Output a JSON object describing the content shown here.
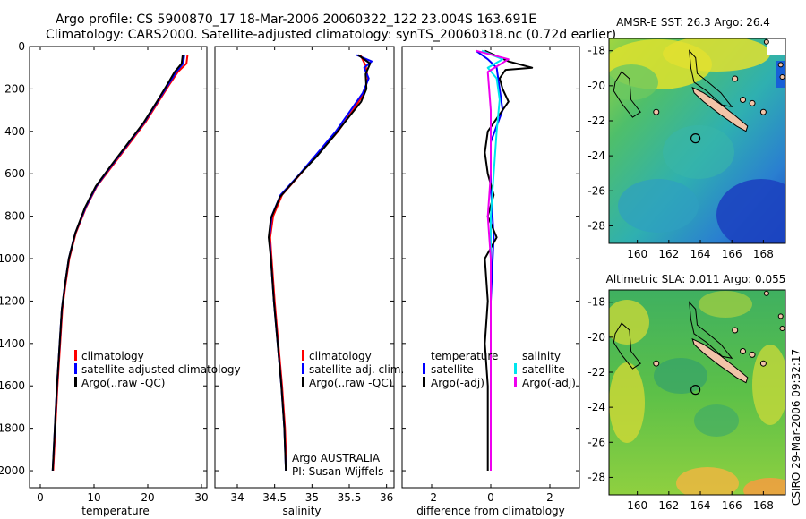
{
  "header": {
    "line1": "Argo profile: CS 5900870_17 18-Mar-2006 20060322_122 23.004S 163.691E",
    "line2": "Climatology: CARS2000. Satellite-adjusted climatology: synTS_20060318.nc (0.72d earlier)"
  },
  "side_stamp": "CSIRO 29-Mar-2006 09:32:17",
  "colors": {
    "climatology": "#ff0000",
    "satellite": "#0000ff",
    "argo": "#000000",
    "sal_satellite": "#00e5ee",
    "sal_argo": "#ee00ee",
    "land": "#f2c4a8"
  },
  "chart_data": [
    {
      "type": "line",
      "id": "temperature",
      "xlabel": "temperature",
      "ylabel": "",
      "xlim": [
        -2,
        31
      ],
      "ylim": [
        2080,
        0
      ],
      "xticks": [
        0,
        10,
        20,
        30
      ],
      "yticks": [
        0,
        200,
        400,
        600,
        800,
        1000,
        1200,
        1400,
        1600,
        1800,
        2000
      ],
      "series": [
        {
          "name": "climatology",
          "color": "#ff0000",
          "points": [
            [
              27.4,
              40
            ],
            [
              27.2,
              80
            ],
            [
              25.6,
              120
            ],
            [
              24.0,
              180
            ],
            [
              22.0,
              260
            ],
            [
              19.5,
              360
            ],
            [
              16.5,
              460
            ],
            [
              13.5,
              560
            ],
            [
              10.5,
              660
            ],
            [
              8.5,
              760
            ],
            [
              6.6,
              880
            ],
            [
              5.4,
              1000
            ],
            [
              4.7,
              1120
            ],
            [
              4.1,
              1240
            ],
            [
              3.7,
              1400
            ],
            [
              3.2,
              1600
            ],
            [
              2.8,
              1800
            ],
            [
              2.4,
              2000
            ]
          ]
        },
        {
          "name": "satellite-adjusted climatology",
          "color": "#0000ff",
          "points": [
            [
              26.8,
              40
            ],
            [
              26.6,
              80
            ],
            [
              25.3,
              120
            ],
            [
              23.8,
              180
            ],
            [
              21.8,
              260
            ],
            [
              19.3,
              360
            ],
            [
              16.3,
              460
            ],
            [
              13.3,
              560
            ],
            [
              10.4,
              660
            ],
            [
              8.4,
              760
            ],
            [
              6.5,
              880
            ],
            [
              5.3,
              1000
            ],
            [
              4.6,
              1120
            ],
            [
              4.0,
              1240
            ],
            [
              3.6,
              1400
            ],
            [
              3.1,
              1600
            ],
            [
              2.7,
              1800
            ],
            [
              2.3,
              2000
            ]
          ]
        },
        {
          "name": "Argo(..raw -QC)",
          "color": "#000000",
          "points": [
            [
              26.5,
              40
            ],
            [
              26.3,
              80
            ],
            [
              25.0,
              120
            ],
            [
              23.6,
              180
            ],
            [
              21.7,
              260
            ],
            [
              19.2,
              360
            ],
            [
              16.2,
              460
            ],
            [
              13.2,
              560
            ],
            [
              10.3,
              660
            ],
            [
              8.3,
              760
            ],
            [
              6.5,
              880
            ],
            [
              5.3,
              1000
            ],
            [
              4.6,
              1120
            ],
            [
              4.0,
              1240
            ],
            [
              3.6,
              1400
            ],
            [
              3.1,
              1600
            ],
            [
              2.7,
              1800
            ],
            [
              2.3,
              2000
            ]
          ]
        }
      ],
      "legend": [
        "climatology",
        "satellite-adjusted climatology",
        "Argo(..raw -QC)"
      ],
      "legend_pos": "bottom-right"
    },
    {
      "type": "line",
      "id": "salinity",
      "xlabel": "salinity",
      "ylabel": "",
      "xlim": [
        33.7,
        36.1
      ],
      "ylim": [
        2080,
        0
      ],
      "xticks": [
        34,
        34.5,
        35,
        35.5,
        36
      ],
      "series": [
        {
          "name": "climatology",
          "color": "#ff0000",
          "points": [
            [
              35.65,
              40
            ],
            [
              35.72,
              90
            ],
            [
              35.75,
              150
            ],
            [
              35.7,
              220
            ],
            [
              35.55,
              300
            ],
            [
              35.35,
              400
            ],
            [
              35.1,
              500
            ],
            [
              34.85,
              600
            ],
            [
              34.6,
              700
            ],
            [
              34.48,
              800
            ],
            [
              34.44,
              900
            ],
            [
              34.46,
              1000
            ],
            [
              34.5,
              1200
            ],
            [
              34.55,
              1400
            ],
            [
              34.6,
              1600
            ],
            [
              34.64,
              1800
            ],
            [
              34.66,
              2000
            ]
          ]
        },
        {
          "name": "satellite adj. clim.",
          "color": "#0000ff",
          "points": [
            [
              35.6,
              40
            ],
            [
              35.8,
              70
            ],
            [
              35.7,
              100
            ],
            [
              35.76,
              150
            ],
            [
              35.68,
              220
            ],
            [
              35.52,
              300
            ],
            [
              35.32,
              400
            ],
            [
              35.08,
              500
            ],
            [
              34.84,
              600
            ],
            [
              34.58,
              700
            ],
            [
              34.46,
              800
            ],
            [
              34.43,
              900
            ],
            [
              34.45,
              1000
            ],
            [
              34.49,
              1200
            ],
            [
              34.54,
              1400
            ],
            [
              34.59,
              1600
            ],
            [
              34.63,
              1800
            ],
            [
              34.65,
              2000
            ]
          ]
        },
        {
          "name": "Argo(..raw -QC)",
          "color": "#000000",
          "points": [
            [
              35.62,
              40
            ],
            [
              35.78,
              80
            ],
            [
              35.72,
              130
            ],
            [
              35.73,
              200
            ],
            [
              35.66,
              260
            ],
            [
              35.5,
              330
            ],
            [
              35.3,
              420
            ],
            [
              35.06,
              520
            ],
            [
              34.82,
              610
            ],
            [
              34.57,
              710
            ],
            [
              34.45,
              810
            ],
            [
              34.42,
              900
            ],
            [
              34.45,
              1000
            ],
            [
              34.49,
              1200
            ],
            [
              34.54,
              1400
            ],
            [
              34.59,
              1600
            ],
            [
              34.63,
              1800
            ],
            [
              34.65,
              2000
            ]
          ]
        }
      ],
      "legend": [
        "climatology",
        "satellite adj. clim.",
        "Argo(..raw -QC)"
      ],
      "annotation": [
        "Argo AUSTRALIA",
        "PI: Susan Wijffels"
      ]
    },
    {
      "type": "line",
      "id": "difference",
      "xlabel": "difference from climatology",
      "ylabel": "",
      "xlim": [
        -3,
        3
      ],
      "ylim": [
        2080,
        0
      ],
      "xticks": [
        -2,
        0,
        2
      ],
      "series": [
        {
          "name": "temperature satellite",
          "color": "#0000ff",
          "points": [
            [
              -0.5,
              20
            ],
            [
              -0.1,
              60
            ],
            [
              0.2,
              100
            ],
            [
              0.3,
              200
            ],
            [
              0.4,
              300
            ],
            [
              0.0,
              450
            ],
            [
              0.0,
              650
            ],
            [
              0.1,
              900
            ],
            [
              0.0,
              1200
            ],
            [
              0.0,
              2000
            ]
          ]
        },
        {
          "name": "temperature Argo(-adj)",
          "color": "#000000",
          "points": [
            [
              -0.2,
              20
            ],
            [
              0.6,
              70
            ],
            [
              1.4,
              100
            ],
            [
              0.5,
              110
            ],
            [
              0.3,
              150
            ],
            [
              0.4,
              200
            ],
            [
              0.6,
              260
            ],
            [
              0.2,
              340
            ],
            [
              -0.1,
              400
            ],
            [
              -0.2,
              500
            ],
            [
              -0.1,
              600
            ],
            [
              0.1,
              700
            ],
            [
              -0.1,
              800
            ],
            [
              0.2,
              900
            ],
            [
              -0.2,
              1000
            ],
            [
              -0.1,
              1200
            ],
            [
              -0.2,
              1400
            ],
            [
              -0.1,
              1600
            ],
            [
              -0.1,
              1800
            ],
            [
              -0.1,
              2000
            ]
          ]
        },
        {
          "name": "salinity satellite",
          "color": "#00e5ee",
          "points": [
            [
              -0.3,
              20
            ],
            [
              0.4,
              60
            ],
            [
              -0.1,
              100
            ],
            [
              0.2,
              150
            ],
            [
              0.3,
              250
            ],
            [
              0.2,
              400
            ],
            [
              0.1,
              600
            ],
            [
              0.0,
              800
            ],
            [
              0.0,
              1200
            ],
            [
              0.0,
              2000
            ]
          ]
        },
        {
          "name": "salinity Argo(-adj)",
          "color": "#ee00ee",
          "points": [
            [
              -0.5,
              20
            ],
            [
              0.6,
              60
            ],
            [
              -0.1,
              120
            ],
            [
              0.0,
              300
            ],
            [
              0.0,
              600
            ],
            [
              -0.1,
              800
            ],
            [
              0.0,
              1000
            ],
            [
              0.0,
              1400
            ],
            [
              0.0,
              1800
            ],
            [
              0.0,
              2000
            ]
          ]
        }
      ],
      "legend_headers": [
        "temperature",
        "salinity"
      ],
      "legend": [
        "satellite",
        "Argo(-adj)",
        "satellite",
        "Argo(-adj)"
      ]
    },
    {
      "type": "heatmap",
      "id": "sst_map",
      "title": "AMSR-E SST: 26.3 Argo: 26.4",
      "xlim": [
        158.2,
        169.4
      ],
      "ylim": [
        -29,
        -17.3
      ],
      "xticks": [
        160,
        162,
        164,
        166,
        168
      ],
      "yticks": [
        -18,
        -20,
        -22,
        -24,
        -26,
        -28
      ],
      "marker": {
        "lon": 163.691,
        "lat": -23.004
      }
    },
    {
      "type": "heatmap",
      "id": "sla_map",
      "title": "Altimetric SLA: 0.011 Argo: 0.055",
      "xlim": [
        158.2,
        169.4
      ],
      "ylim": [
        -29,
        -17.3
      ],
      "xticks": [
        160,
        162,
        164,
        166,
        168
      ],
      "yticks": [
        -18,
        -20,
        -22,
        -24,
        -26,
        -28
      ],
      "marker": {
        "lon": 163.691,
        "lat": -23.004
      }
    }
  ]
}
